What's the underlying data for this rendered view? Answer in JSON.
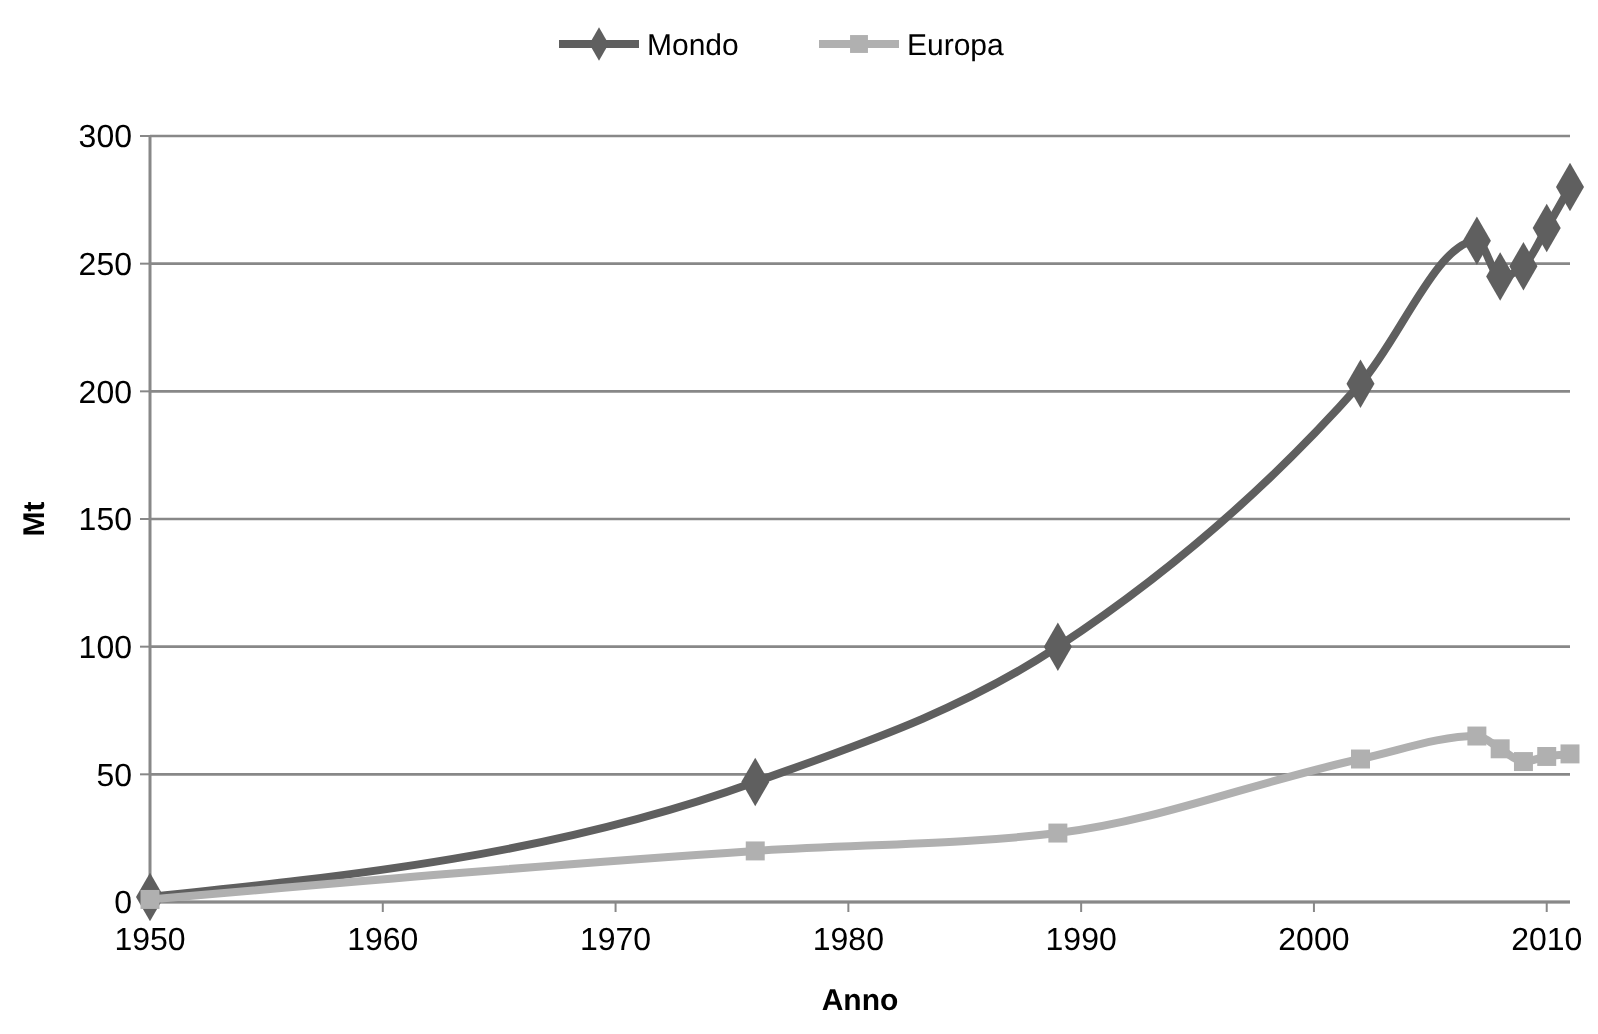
{
  "chart_data": {
    "type": "line",
    "xlabel": "Anno",
    "ylabel": "Mt",
    "xlim": [
      1950,
      2011
    ],
    "xticks": [
      1950,
      1960,
      1970,
      1980,
      1990,
      2000,
      2010
    ],
    "ylim": [
      0,
      300
    ],
    "yticks": [
      0,
      50,
      100,
      150,
      200,
      250,
      300
    ],
    "grid": "y",
    "legend": "top",
    "series": [
      {
        "name": "Mondo",
        "color": "#5f5f5f",
        "marker": "diamond",
        "x": [
          1950,
          1976,
          1989,
          2002,
          2007,
          2008,
          2009,
          2010,
          2011
        ],
        "values": [
          2,
          47,
          100,
          203,
          259,
          245,
          249,
          264,
          280
        ]
      },
      {
        "name": "Europa",
        "color": "#b0b0b0",
        "marker": "square",
        "x": [
          1950,
          1976,
          1989,
          2002,
          2007,
          2008,
          2009,
          2010,
          2011
        ],
        "values": [
          1,
          20,
          27,
          56,
          65,
          60,
          55,
          57,
          58
        ]
      }
    ]
  }
}
